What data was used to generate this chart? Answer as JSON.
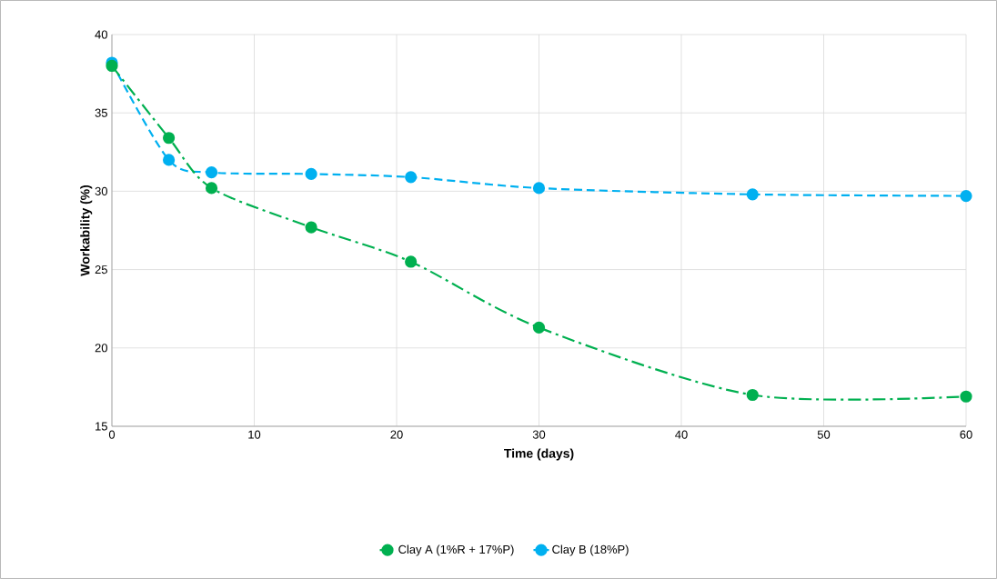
{
  "chart_data": {
    "type": "line",
    "xlabel": "Time (days)",
    "ylabel": "Workability (%)",
    "x": [
      0,
      4,
      7,
      14,
      21,
      30,
      45,
      60
    ],
    "series": [
      {
        "name": "Clay A (1%R + 17%P)",
        "color": "#00b050",
        "line_style": "dashdot",
        "values": [
          38.0,
          33.4,
          30.2,
          27.7,
          25.5,
          21.3,
          17.0,
          16.9
        ]
      },
      {
        "name": "Clay B (18%P)",
        "color": "#00b0f0",
        "line_style": "dashed",
        "values": [
          38.2,
          32.0,
          31.2,
          31.1,
          30.9,
          30.2,
          29.8,
          29.7
        ]
      }
    ],
    "xlim": [
      0,
      60
    ],
    "ylim": [
      15,
      40
    ],
    "xticks": [
      0,
      10,
      20,
      30,
      40,
      50,
      60
    ],
    "yticks": [
      15,
      20,
      25,
      30,
      35,
      40
    ],
    "grid": true,
    "legend": "bottom",
    "marker": "circle"
  }
}
